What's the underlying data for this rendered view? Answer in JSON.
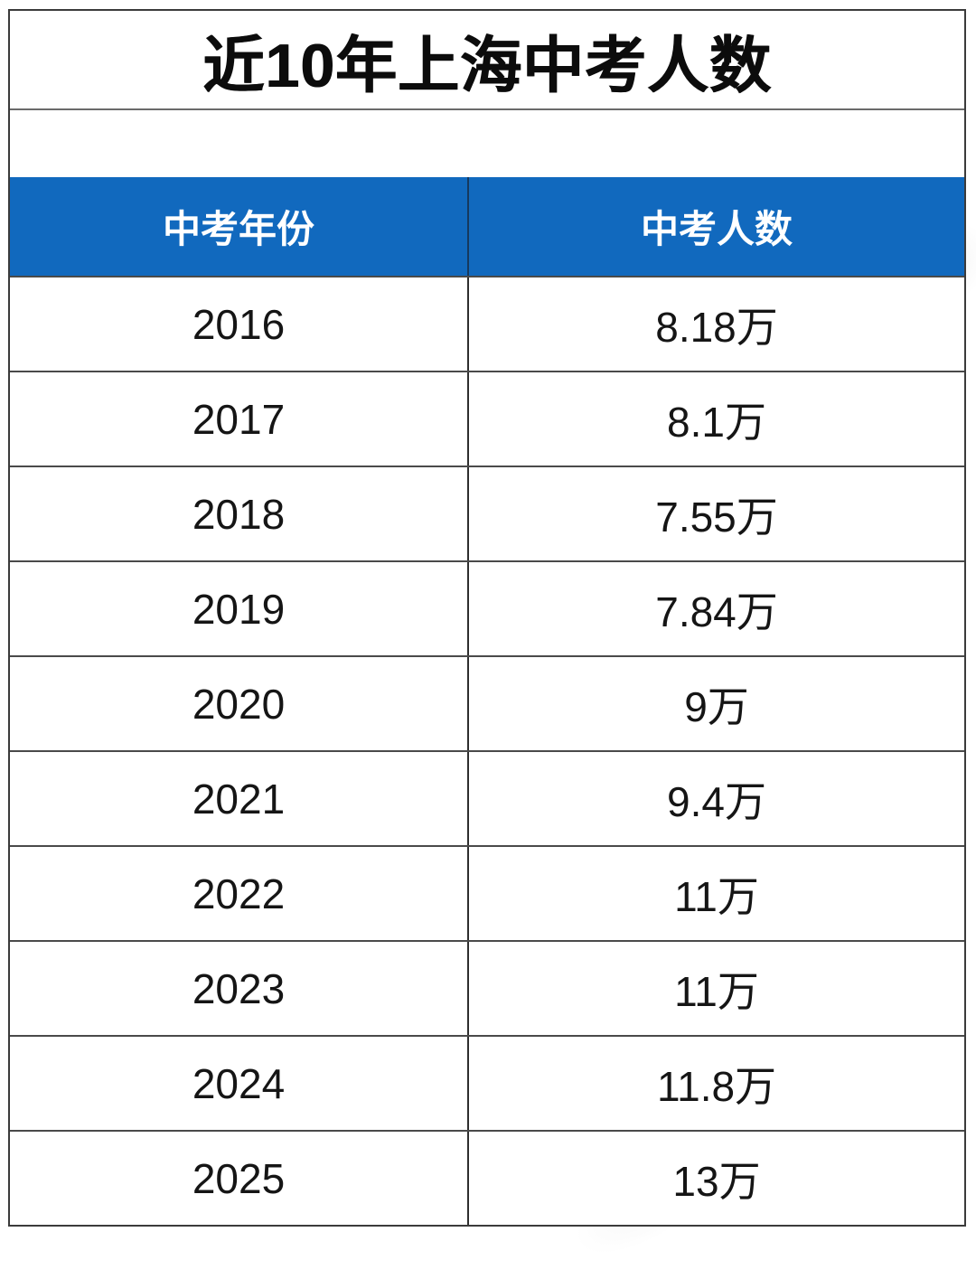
{
  "title": "近10年上海中考人数",
  "table": {
    "columns": [
      {
        "label": "中考年份"
      },
      {
        "label": "中考人数"
      }
    ],
    "rows": [
      {
        "year": "2016",
        "count": "8.18万"
      },
      {
        "year": "2017",
        "count": "8.1万"
      },
      {
        "year": "2018",
        "count": "7.55万"
      },
      {
        "year": "2019",
        "count": "7.84万"
      },
      {
        "year": "2020",
        "count": "9万"
      },
      {
        "year": "2021",
        "count": "9.4万"
      },
      {
        "year": "2022",
        "count": "11万"
      },
      {
        "year": "2023",
        "count": "11万"
      },
      {
        "year": "2024",
        "count": "11.8万"
      },
      {
        "year": "2025",
        "count": "13万"
      }
    ]
  },
  "colors": {
    "header_bg": "#1169BE",
    "header_text": "#FFFFFF",
    "border_dark": "#3B3B3B",
    "row_divider": "#4A4A4A",
    "column_divider": "#2E2E2E",
    "title_text": "#0C0C0C",
    "body_text": "#151515"
  },
  "chart_data": {
    "type": "table",
    "title": "近10年上海中考人数",
    "columns": [
      "中考年份",
      "中考人数"
    ],
    "rows": [
      [
        "2016",
        "8.18万"
      ],
      [
        "2017",
        "8.1万"
      ],
      [
        "2018",
        "7.55万"
      ],
      [
        "2019",
        "7.84万"
      ],
      [
        "2020",
        "9万"
      ],
      [
        "2021",
        "9.4万"
      ],
      [
        "2022",
        "11万"
      ],
      [
        "2023",
        "11万"
      ],
      [
        "2024",
        "11.8万"
      ],
      [
        "2025",
        "13万"
      ]
    ],
    "years": [
      2016,
      2017,
      2018,
      2019,
      2020,
      2021,
      2022,
      2023,
      2024,
      2025
    ],
    "values_wan": [
      8.18,
      8.1,
      7.55,
      7.84,
      9,
      9.4,
      11,
      11,
      11.8,
      13
    ],
    "unit": "万"
  }
}
